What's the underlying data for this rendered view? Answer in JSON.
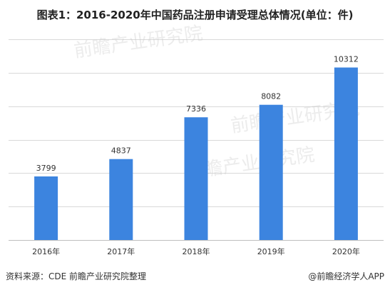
{
  "title": "图表1：2016-2020年中国药品注册申请受理总体情况(单位：件)",
  "chart_data": {
    "type": "bar",
    "title": "图表1：2016-2020年中国药品注册申请受理总体情况(单位：件)",
    "categories": [
      "2016年",
      "2017年",
      "2018年",
      "2019年",
      "2020年"
    ],
    "values": [
      3799,
      4837,
      7336,
      8082,
      10312
    ],
    "value_labels": [
      "3799",
      "4837",
      "7336",
      "8082",
      "10312"
    ],
    "xlabel": "",
    "ylabel": "",
    "ylim": [
      0,
      12000
    ],
    "grid": true,
    "bar_color": "#3c84df",
    "grid_color": "#d9d9d9"
  },
  "footer": {
    "source": "资料来源：CDE 前瞻产业研究院整理",
    "credit": "@前瞻经济学人APP"
  },
  "watermark": "前瞻产业研究院"
}
